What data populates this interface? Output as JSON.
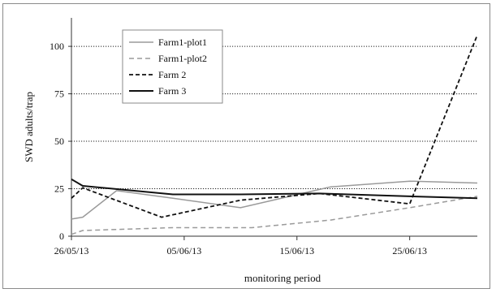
{
  "chart_data": {
    "type": "line",
    "title": "",
    "xlabel": "monitoring period",
    "ylabel": "SWD adults/trap",
    "ylim": [
      0,
      115
    ],
    "yticks": [
      0,
      25,
      50,
      75,
      100
    ],
    "xlim": [
      "2013-05-26",
      "2013-07-01"
    ],
    "xticks": [
      {
        "date": "2013-05-26",
        "label": "26/05/13"
      },
      {
        "date": "2013-06-05",
        "label": "05/06/13"
      },
      {
        "date": "2013-06-15",
        "label": "15/06/13"
      },
      {
        "date": "2013-06-25",
        "label": "25/06/13"
      }
    ],
    "grid": "horizontal dotted",
    "legend_position": "top-left",
    "series": [
      {
        "name": "Farm1-plot1",
        "style": "solid",
        "color": "#9a9a9a",
        "points": [
          {
            "x": "2013-05-26",
            "y": 9
          },
          {
            "x": "2013-05-27",
            "y": 10
          },
          {
            "x": "2013-05-30",
            "y": 24
          },
          {
            "x": "2013-06-04",
            "y": 20
          },
          {
            "x": "2013-06-10",
            "y": 15
          },
          {
            "x": "2013-06-18",
            "y": 26
          },
          {
            "x": "2013-06-25",
            "y": 29
          },
          {
            "x": "2013-07-01",
            "y": 28
          }
        ]
      },
      {
        "name": "Farm1-plot2",
        "style": "dashed",
        "color": "#9a9a9a",
        "points": [
          {
            "x": "2013-05-26",
            "y": 1
          },
          {
            "x": "2013-05-27",
            "y": 3
          },
          {
            "x": "2013-06-04",
            "y": 4.5
          },
          {
            "x": "2013-06-11",
            "y": 4.5
          },
          {
            "x": "2013-06-18",
            "y": 8.5
          },
          {
            "x": "2013-06-25",
            "y": 15
          },
          {
            "x": "2013-07-01",
            "y": 21
          }
        ]
      },
      {
        "name": "Farm 2",
        "style": "dashed",
        "color": "#111111",
        "points": [
          {
            "x": "2013-05-26",
            "y": 20
          },
          {
            "x": "2013-05-27",
            "y": 25.5
          },
          {
            "x": "2013-06-03",
            "y": 10
          },
          {
            "x": "2013-06-10",
            "y": 19
          },
          {
            "x": "2013-06-17",
            "y": 22.5
          },
          {
            "x": "2013-06-25",
            "y": 17
          },
          {
            "x": "2013-07-01",
            "y": 106
          }
        ]
      },
      {
        "name": "Farm 3",
        "style": "solid",
        "color": "#111111",
        "points": [
          {
            "x": "2013-05-26",
            "y": 30
          },
          {
            "x": "2013-05-27",
            "y": 26.5
          },
          {
            "x": "2013-06-04",
            "y": 22
          },
          {
            "x": "2013-06-10",
            "y": 22
          },
          {
            "x": "2013-06-17",
            "y": 22.5
          },
          {
            "x": "2013-06-25",
            "y": 21
          },
          {
            "x": "2013-07-01",
            "y": 20
          }
        ]
      }
    ]
  }
}
